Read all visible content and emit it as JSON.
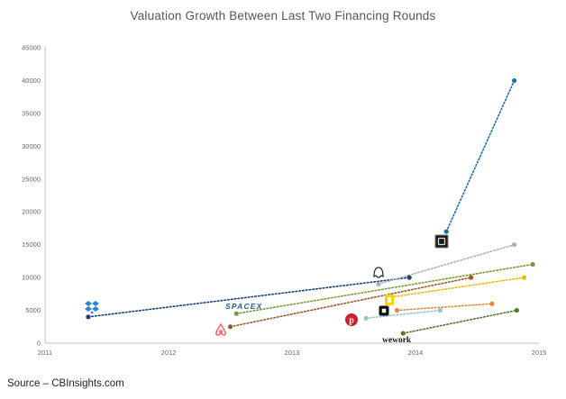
{
  "chart_data": {
    "type": "scatter",
    "title": "Valuation Growth Between Last Two Financing Rounds",
    "xlabel": "",
    "ylabel": "",
    "xlim": [
      2011,
      2015
    ],
    "ylim": [
      0,
      45000
    ],
    "x_ticks": [
      "2011",
      "2012",
      "2013",
      "2014",
      "2015"
    ],
    "y_ticks": [
      "0",
      "5000",
      "10000",
      "15000",
      "20000",
      "25000",
      "30000",
      "35000",
      "40000",
      "45000"
    ],
    "grid": false,
    "legend": "none",
    "series": [
      {
        "logo": "uber",
        "color": "#1f6fa8",
        "points": [
          [
            2014.25,
            17000
          ],
          [
            2014.8,
            40000
          ]
        ]
      },
      {
        "logo": "dropbox",
        "color": "#1a3f73",
        "points": [
          [
            2011.35,
            4000
          ],
          [
            2013.95,
            10000
          ]
        ]
      },
      {
        "logo": "snapchat",
        "color": "#b0b0b0",
        "points": [
          [
            2013.7,
            9000
          ],
          [
            2014.8,
            15000
          ]
        ]
      },
      {
        "logo": "spacex",
        "color": "#7a9a3a",
        "points": [
          [
            2012.55,
            4500
          ],
          [
            2014.95,
            12000
          ]
        ]
      },
      {
        "logo": "airbnb",
        "color": "#9a5a2a",
        "points": [
          [
            2012.5,
            2500
          ],
          [
            2014.45,
            10000
          ]
        ]
      },
      {
        "logo": "square",
        "color": "#f5b800",
        "points": [
          [
            2013.8,
            7000
          ],
          [
            2014.88,
            10000
          ]
        ]
      },
      {
        "logo": "squaretwo",
        "color": "#e08a3a",
        "points": [
          [
            2013.85,
            5000
          ],
          [
            2014.62,
            6000
          ]
        ]
      },
      {
        "logo": "pinterest",
        "color": "#8ec9c0",
        "points": [
          [
            2013.6,
            3800
          ],
          [
            2014.2,
            5000
          ]
        ]
      },
      {
        "logo": "wework",
        "color": "#4a7a2a",
        "points": [
          [
            2013.9,
            1500
          ],
          [
            2014.82,
            5000
          ]
        ]
      }
    ]
  },
  "logos": {
    "spacex": "SPACEX",
    "wework": "wework",
    "dropbox_icon": "dropbox-icon",
    "uber_icon": "uber-icon",
    "airbnb_icon": "airbnb-icon",
    "pinterest_icon": "pinterest-icon",
    "snapchat_icon": "snapchat-icon",
    "square_icon": "square-icon"
  },
  "source": "Source – CBInsights.com"
}
